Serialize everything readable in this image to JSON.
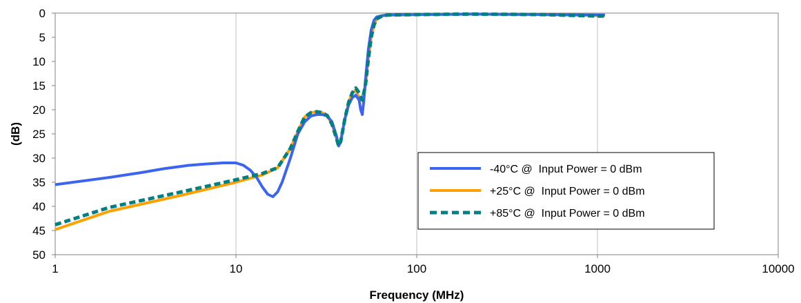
{
  "chart_data": {
    "type": "line",
    "title": "",
    "xlabel": "Frequency (MHz)",
    "ylabel": "(dB)",
    "x_scale": "log",
    "xlim": [
      1,
      10000
    ],
    "ylim": [
      0,
      50
    ],
    "y_inverted": true,
    "x_ticks": [
      "1",
      "10",
      "100",
      "1000",
      "10000"
    ],
    "y_ticks": [
      "0",
      "5",
      "10",
      "15",
      "20",
      "25",
      "30",
      "35",
      "40",
      "45",
      "50"
    ],
    "grid": "vertical",
    "legend_position": "lower-right",
    "series": [
      {
        "name": "-40°C @  Input Power = 0 dBm",
        "color": "#3c64f0",
        "style": "solid",
        "x": [
          1,
          2,
          3,
          4,
          5.5,
          7,
          8.5,
          10,
          11,
          12,
          13,
          14,
          15,
          16,
          17,
          18,
          20,
          22,
          24,
          26,
          28,
          30,
          32,
          34,
          36,
          37,
          38,
          40,
          42,
          44,
          46,
          48,
          49,
          50,
          51,
          52,
          54,
          56,
          58,
          60,
          65,
          70,
          100,
          200,
          500,
          1000,
          1100
        ],
        "y": [
          35.5,
          34,
          33,
          32.2,
          31.5,
          31.2,
          31,
          31,
          31.5,
          32.5,
          34,
          36,
          37.5,
          38,
          37,
          35,
          30,
          25,
          22.5,
          21.3,
          21,
          21,
          21.3,
          22.5,
          25.5,
          27.5,
          26.5,
          22,
          19,
          17.5,
          17,
          18,
          20,
          21,
          18,
          14,
          7.5,
          3.5,
          1.5,
          0.8,
          0.5,
          0.4,
          0.3,
          0.2,
          0.3,
          0.4,
          0.4
        ]
      },
      {
        "name": "+25°C @  Input Power = 0 dBm",
        "color": "#ffa000",
        "style": "solid",
        "x": [
          1,
          2,
          5,
          10,
          14,
          17,
          20,
          22,
          24,
          26,
          28,
          30,
          32,
          34,
          36,
          37,
          38,
          40,
          42,
          44,
          46,
          48,
          50,
          52,
          54,
          56,
          58,
          60,
          65,
          70,
          100,
          200,
          500,
          1000,
          1100
        ],
        "y": [
          44.8,
          41,
          37.7,
          35,
          33.5,
          32,
          28,
          24.5,
          21.5,
          20.6,
          20.4,
          20.6,
          21.2,
          23,
          26,
          27.5,
          26.5,
          22,
          18.5,
          16.5,
          16,
          17.5,
          18,
          15,
          9.5,
          5,
          2.5,
          1.2,
          0.5,
          0.4,
          0.3,
          0.2,
          0.3,
          0.5,
          0.5
        ]
      },
      {
        "name": "+85°C @  Input Power = 0 dBm",
        "color": "#008080",
        "style": "dashed",
        "x": [
          1,
          2,
          5,
          10,
          14,
          17,
          20,
          22,
          24,
          26,
          28,
          30,
          32,
          34,
          36,
          37,
          38,
          40,
          42,
          44,
          46,
          48,
          50,
          52,
          54,
          56,
          58,
          60,
          65,
          70,
          100,
          200,
          500,
          1000,
          1100
        ],
        "y": [
          43.8,
          40.2,
          37,
          34.5,
          33.2,
          32,
          28,
          24.5,
          21.5,
          20.6,
          20.4,
          20.6,
          21.2,
          23,
          26,
          27.5,
          26.5,
          22,
          18.5,
          16.5,
          15.5,
          16.5,
          18,
          15,
          9.5,
          5,
          2.5,
          1.2,
          0.5,
          0.4,
          0.3,
          0.2,
          0.3,
          0.6,
          0.6
        ]
      }
    ]
  }
}
